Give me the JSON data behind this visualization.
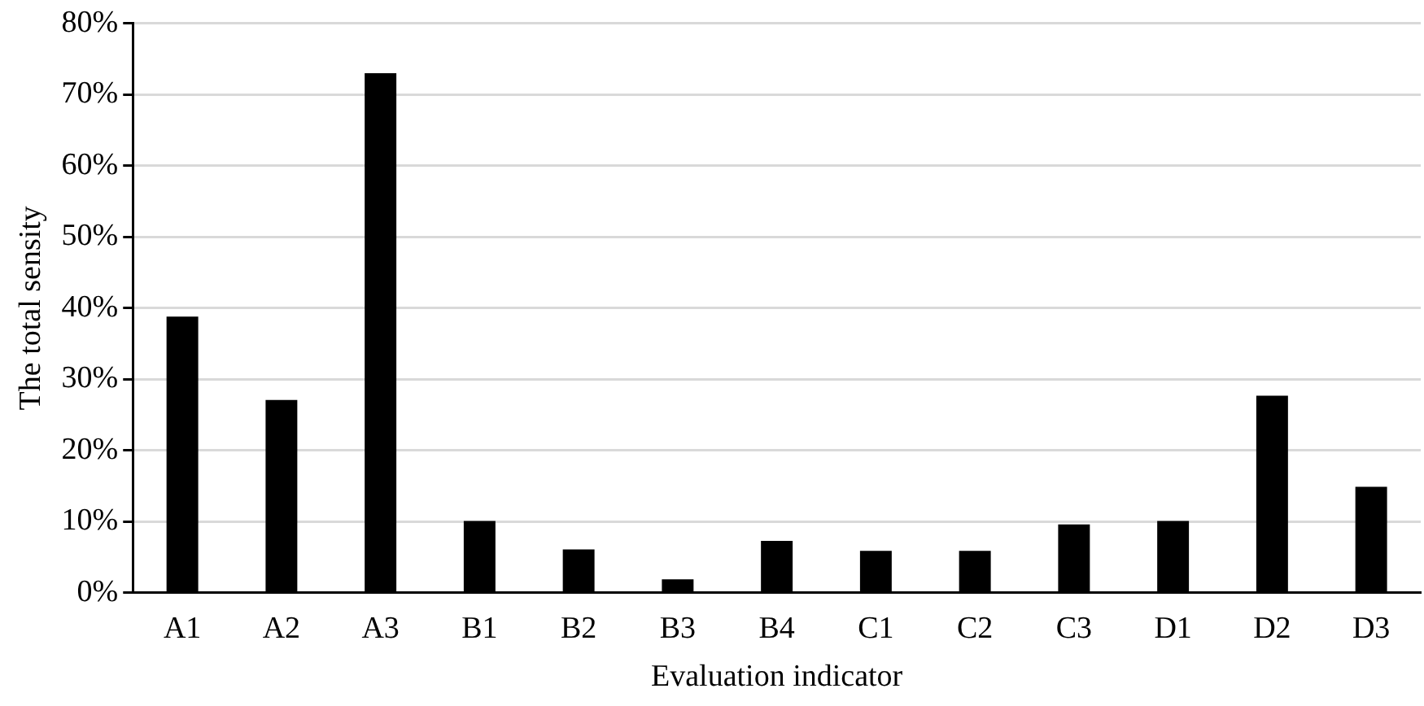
{
  "chart_data": {
    "type": "bar",
    "xlabel": "Evaluation indicator",
    "ylabel": "The total sensity",
    "categories": [
      "A1",
      "A2",
      "A3",
      "B1",
      "B2",
      "B3",
      "B4",
      "C1",
      "C2",
      "C3",
      "D1",
      "D2",
      "D3"
    ],
    "values": [
      38.8,
      27.1,
      73.0,
      10.1,
      6.1,
      1.9,
      7.3,
      5.9,
      5.9,
      9.6,
      10.1,
      27.7,
      14.9
    ],
    "color": "#000000",
    "ylim": [
      0,
      80
    ],
    "yticks": [
      {
        "value": 0,
        "label": "0%"
      },
      {
        "value": 10,
        "label": "10%"
      },
      {
        "value": 20,
        "label": "20%"
      },
      {
        "value": 30,
        "label": "30%"
      },
      {
        "value": 40,
        "label": "40%"
      },
      {
        "value": 50,
        "label": "50%"
      },
      {
        "value": 60,
        "label": "60%"
      },
      {
        "value": 70,
        "label": "70%"
      },
      {
        "value": 80,
        "label": "80%"
      }
    ],
    "grid": "y",
    "legend": false
  }
}
